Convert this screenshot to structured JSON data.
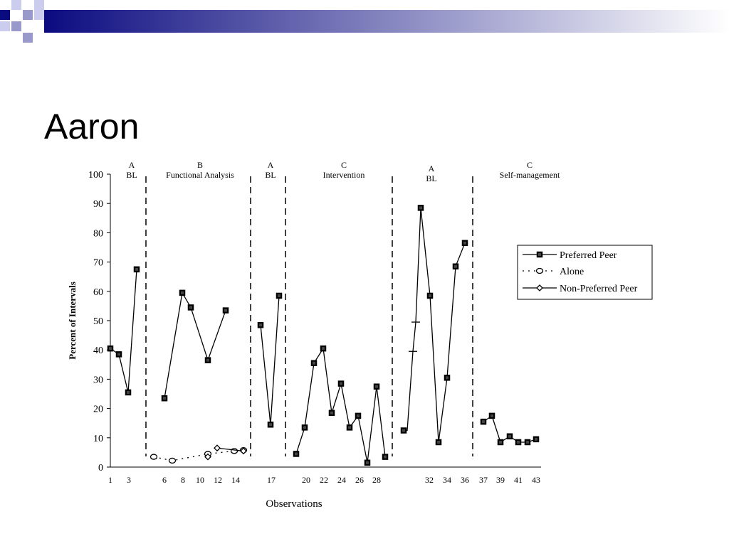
{
  "slide": {
    "title": "Aaron"
  },
  "colors": {
    "header_dark": "#0b0b80",
    "header_light": "#ffffff",
    "header_block": "#9999cc",
    "series": "#000000"
  },
  "chart_data": {
    "type": "line",
    "title": "",
    "xlabel": "Observations",
    "ylabel": "Percent of Intervals",
    "ylim": [
      0,
      100
    ],
    "y_ticks": [
      0,
      10,
      20,
      30,
      40,
      50,
      60,
      70,
      80,
      90,
      100
    ],
    "x_tick_labels": [
      1,
      3,
      6,
      8,
      10,
      12,
      14,
      17,
      20,
      22,
      24,
      26,
      28,
      32,
      34,
      36,
      37,
      39,
      41,
      43
    ],
    "xlim": [
      1,
      43
    ],
    "legend": "right",
    "phase_lines": [
      4.0,
      15.5,
      19.5,
      33.0,
      36.5
    ],
    "phases": [
      {
        "line1": "A",
        "line2": "BL",
        "center": 3.2
      },
      {
        "line1": "B",
        "line2": "Functional Analysis",
        "center": 11.0
      },
      {
        "line1": "A",
        "line2": "BL",
        "center": 17.0
      },
      {
        "line1": "C",
        "line2": "Intervention",
        "center": 25.3
      },
      {
        "line1": "A",
        "line2": "BL",
        "center": 36.8
      },
      {
        "line1": "C",
        "line2": "Self-management",
        "center": 49.0
      }
    ],
    "series": [
      {
        "name": "Preferred Peer",
        "marker": "square",
        "line": "solid",
        "segments": [
          [
            [
              1,
              40.5
            ],
            [
              2,
              38.5
            ],
            [
              3,
              25.5
            ],
            [
              4,
              67.5
            ]
          ],
          [
            [
              6,
              23.5
            ],
            [
              8,
              59.5
            ],
            [
              9,
              54.5
            ],
            [
              11,
              36.5
            ],
            [
              12.6,
              53.5
            ]
          ],
          [
            [
              17,
              48.5
            ],
            [
              18.1,
              14.5
            ],
            [
              19.2,
              58.5
            ]
          ],
          [
            [
              20,
              4.5
            ],
            [
              21,
              13.5
            ],
            [
              22,
              35.5
            ],
            [
              23,
              40.5
            ],
            [
              24,
              18.5
            ],
            [
              25,
              28.5
            ],
            [
              26,
              13.5
            ],
            [
              27,
              17.5
            ],
            [
              28,
              1.5
            ],
            [
              29,
              27.5
            ],
            [
              30,
              3.5
            ]
          ]
        ]
      },
      {
        "name": "Alone",
        "marker": "circle",
        "line": "dotted",
        "segments": [
          [
            [
              5,
              3.5
            ],
            [
              7,
              2.2
            ],
            [
              11,
              4.5
            ],
            [
              14,
              5.5
            ],
            [
              15,
              5.8
            ]
          ]
        ]
      },
      {
        "name": "Non-Preferred Peer",
        "marker": "diamond",
        "line": "solid",
        "segments": [
          [
            [
              11,
              3.5
            ]
          ],
          [
            [
              12,
              6.5
            ],
            [
              15,
              5.5
            ]
          ]
        ]
      }
    ]
  },
  "chart_data_extra": {
    "preferred_peer_phase5": [
      [
        32,
        12.5
      ],
      [
        33,
        12.5
      ],
      [
        34,
        39.5
      ],
      [
        35,
        49.5
      ],
      [
        36,
        88.5
      ],
      [
        37,
        58.5
      ],
      [
        38,
        8.5
      ],
      [
        39,
        30.5
      ],
      [
        40,
        68.5
      ],
      [
        41,
        76.5
      ]
    ],
    "preferred_peer_phase6": [
      [
        42,
        15.5
      ],
      [
        43,
        17.5
      ],
      [
        44,
        8.5
      ],
      [
        45,
        10.5
      ],
      [
        46,
        8.5
      ],
      [
        47,
        8.5
      ],
      [
        48,
        9.5
      ]
    ]
  }
}
